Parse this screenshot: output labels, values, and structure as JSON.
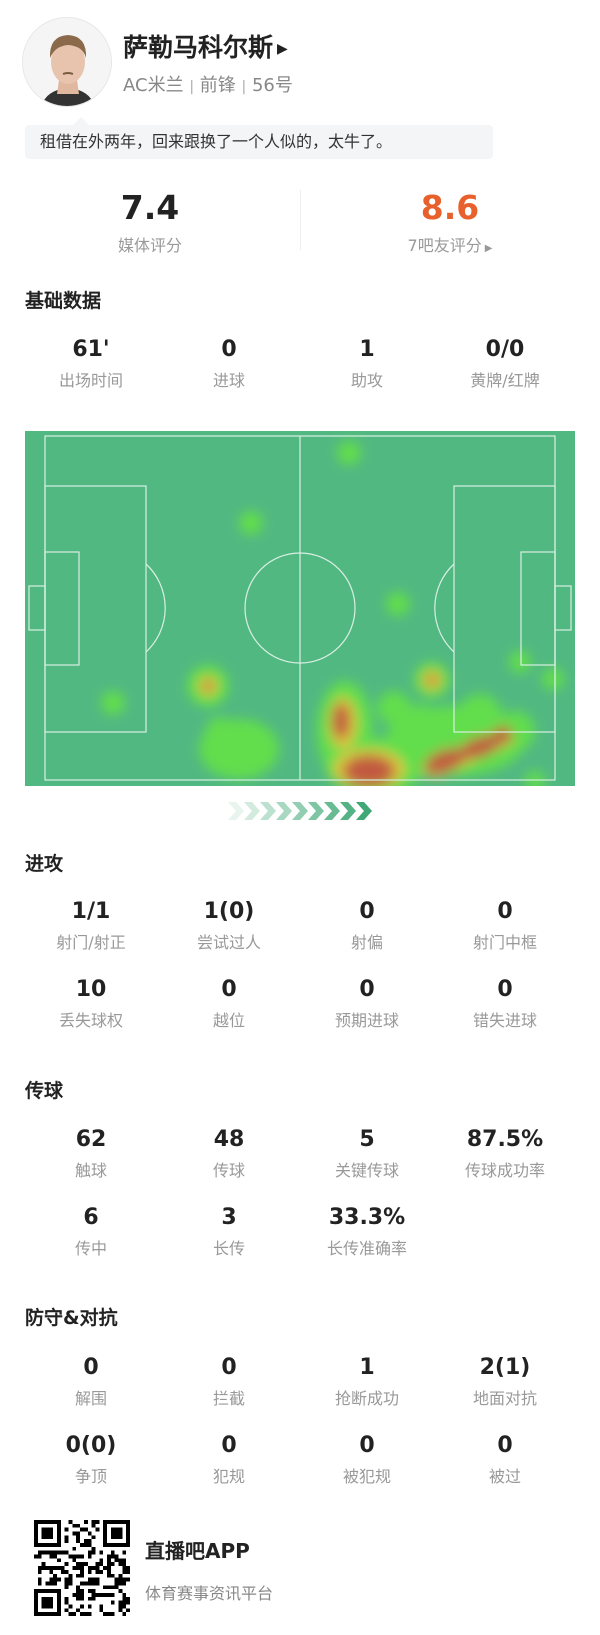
{
  "player": {
    "name": "萨勒马科尔斯",
    "team": "AC米兰",
    "position": "前锋",
    "number": "56号",
    "separator": "|",
    "avatar_icon": "player-photo"
  },
  "comment": "租借在外两年，回来跟换了一个人似的，太牛了。",
  "ratings": {
    "media": {
      "value": "7.4",
      "label": "媒体评分"
    },
    "fans": {
      "value": "8.6",
      "label": "7吧友评分",
      "color": "#e8612c"
    }
  },
  "sections": {
    "basic": {
      "title": "基础数据",
      "rows": [
        [
          {
            "value": "61'",
            "label": "出场时间"
          },
          {
            "value": "0",
            "label": "进球"
          },
          {
            "value": "1",
            "label": "助攻"
          },
          {
            "value": "0/0",
            "label": "黄牌/红牌"
          }
        ]
      ]
    },
    "attack": {
      "title": "进攻",
      "rows": [
        [
          {
            "value": "1/1",
            "label": "射门/射正"
          },
          {
            "value": "1(0)",
            "label": "尝试过人"
          },
          {
            "value": "0",
            "label": "射偏"
          },
          {
            "value": "0",
            "label": "射门中框"
          }
        ],
        [
          {
            "value": "10",
            "label": "丢失球权"
          },
          {
            "value": "0",
            "label": "越位"
          },
          {
            "value": "0",
            "label": "预期进球"
          },
          {
            "value": "0",
            "label": "错失进球"
          }
        ]
      ]
    },
    "passing": {
      "title": "传球",
      "rows": [
        [
          {
            "value": "62",
            "label": "触球"
          },
          {
            "value": "48",
            "label": "传球"
          },
          {
            "value": "5",
            "label": "关键传球"
          },
          {
            "value": "87.5%",
            "label": "传球成功率"
          }
        ],
        [
          {
            "value": "6",
            "label": "传中"
          },
          {
            "value": "3",
            "label": "长传"
          },
          {
            "value": "33.3%",
            "label": "长传准确率"
          }
        ]
      ]
    },
    "defense": {
      "title": "防守&对抗",
      "rows": [
        [
          {
            "value": "0",
            "label": "解围"
          },
          {
            "value": "0",
            "label": "拦截"
          },
          {
            "value": "1",
            "label": "抢断成功"
          },
          {
            "value": "2(1)",
            "label": "地面对抗"
          }
        ],
        [
          {
            "value": "0(0)",
            "label": "争顶"
          },
          {
            "value": "0",
            "label": "犯规"
          },
          {
            "value": "0",
            "label": "被犯规"
          },
          {
            "value": "0",
            "label": "被过"
          }
        ]
      ]
    }
  },
  "heatmap": {
    "pitch_color": "#52b882",
    "line_color": "#d8efe2",
    "attack_direction": "right",
    "arrow_color": "#3fa876"
  },
  "footer": {
    "app_name": "直播吧APP",
    "tagline": "体育赛事资讯平台",
    "qr_icon": "qr-code"
  }
}
